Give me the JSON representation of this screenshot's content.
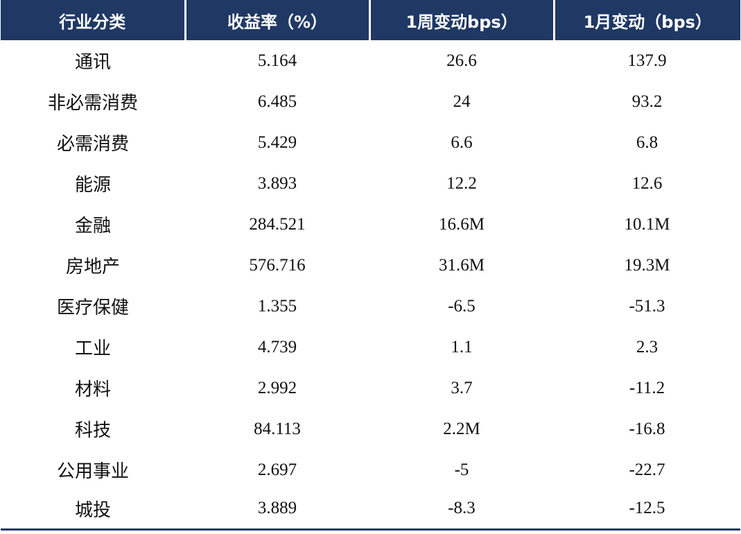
{
  "table": {
    "headers": [
      "行业分类",
      "收益率（%）",
      "1周变动bps）",
      "1月变动（bps）"
    ],
    "rows": [
      [
        "通讯",
        "5.164",
        "26.6",
        "137.9"
      ],
      [
        "非必需消费",
        "6.485",
        "24",
        "93.2"
      ],
      [
        "必需消费",
        "5.429",
        "6.6",
        "6.8"
      ],
      [
        "能源",
        "3.893",
        "12.2",
        "12.6"
      ],
      [
        "金融",
        "284.521",
        "16.6M",
        "10.1M"
      ],
      [
        "房地产",
        "576.716",
        "31.6M",
        "19.3M"
      ],
      [
        "医疗保健",
        "1.355",
        "-6.5",
        "-51.3"
      ],
      [
        "工业",
        "4.739",
        "1.1",
        "2.3"
      ],
      [
        "材料",
        "2.992",
        "3.7",
        "-11.2"
      ],
      [
        "科技",
        "84.113",
        "2.2M",
        "-16.8"
      ],
      [
        "公用事业",
        "2.697",
        "-5",
        "-22.7"
      ],
      [
        "城投",
        "3.889",
        "-8.3",
        "-12.5"
      ]
    ]
  },
  "colors": {
    "header_bg": "#1f3864",
    "header_text": "#ffffff",
    "body_text": "#111111"
  }
}
